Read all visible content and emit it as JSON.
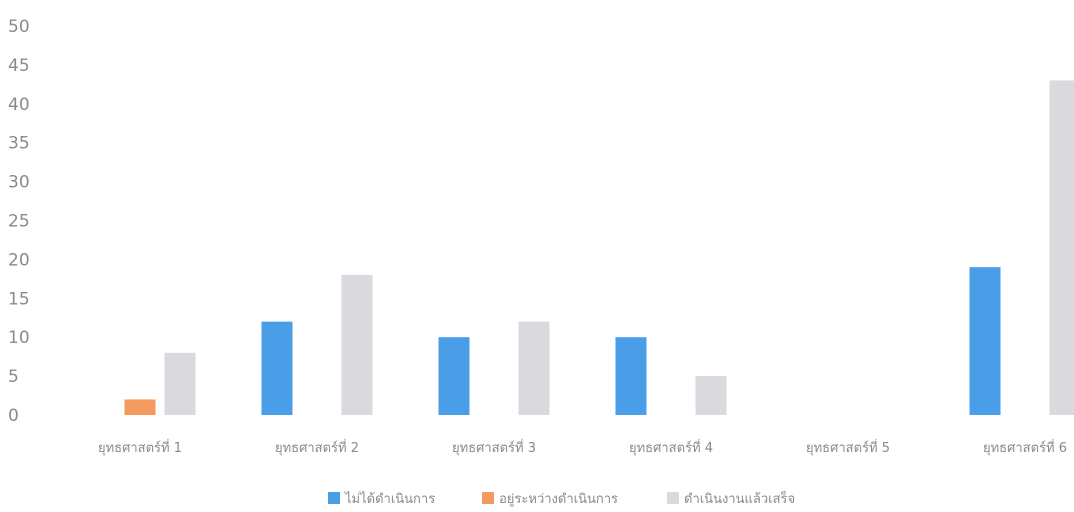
{
  "chart_data": {
    "type": "bar",
    "title": "",
    "xlabel": "",
    "ylabel": "",
    "ylim": [
      0,
      50
    ],
    "yticks": [
      0,
      5,
      10,
      15,
      20,
      25,
      30,
      35,
      40,
      45,
      50
    ],
    "grid": false,
    "legend_position": "bottom",
    "categories": [
      "ยุทธศาสตร์ที่ 1",
      "ยุทธศาสตร์ที่ 2",
      "ยุทธศาสตร์ที่ 3",
      "ยุทธศาสตร์ที่ 4",
      "ยุทธศาสตร์ที่ 5",
      "ยุทธศาสตร์ที่ 6"
    ],
    "series": [
      {
        "name": "ไม่ได้ดำเนินการ",
        "color": "#4a9ee8",
        "values": [
          0,
          12,
          10,
          10,
          0,
          19
        ]
      },
      {
        "name": "อยู่ระหว่างดำเนินการ",
        "color": "#f59a5e",
        "values": [
          2,
          0,
          0,
          0,
          0,
          0
        ]
      },
      {
        "name": "ดำเนินงานแล้วเสร็จ",
        "color": "#d9d9de",
        "values": [
          8,
          18,
          12,
          5,
          0,
          43
        ]
      }
    ]
  }
}
